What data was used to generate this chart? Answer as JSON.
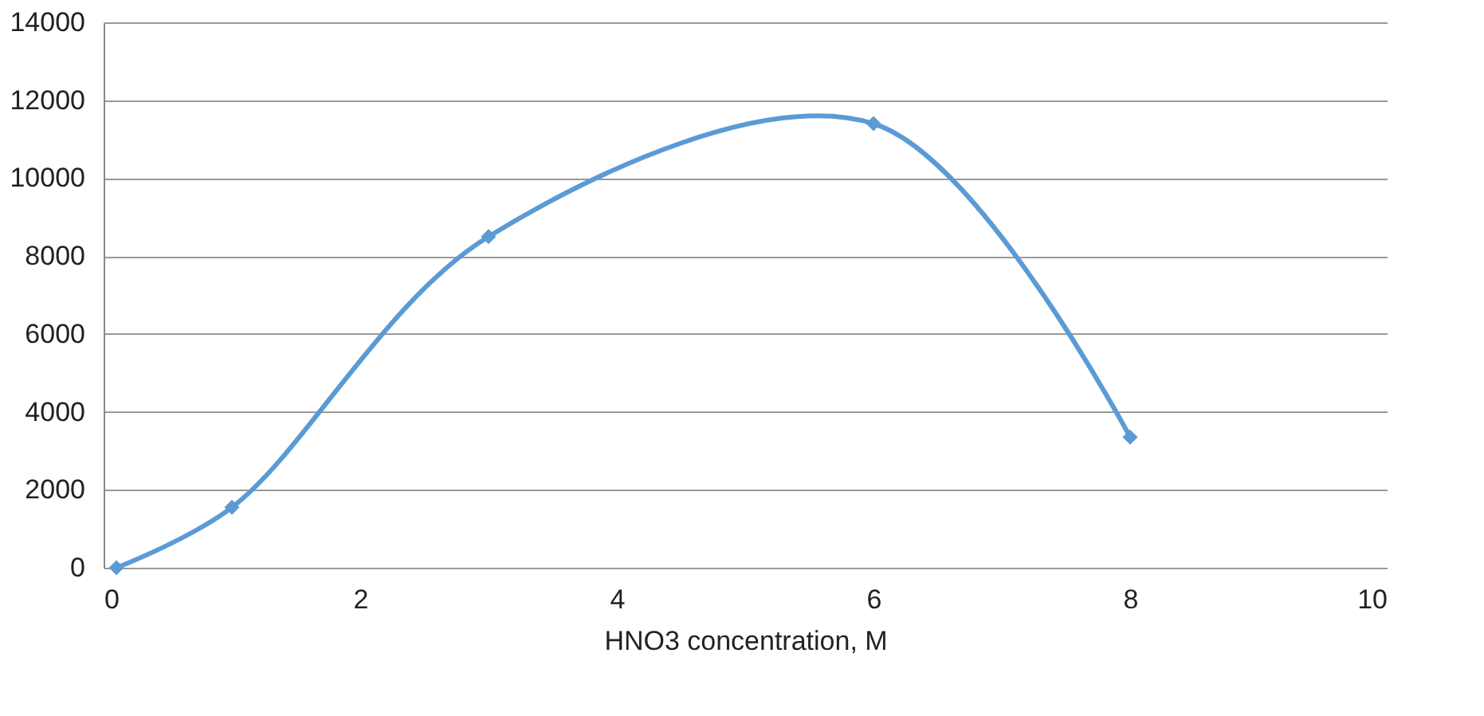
{
  "chart_data": {
    "type": "line",
    "xlabel": "HNO3 concentration, M",
    "x": [
      0.1,
      1,
      3,
      6,
      8
    ],
    "series": [
      {
        "color": "#5b9bd5",
        "values": [
          0,
          1550,
          8500,
          11400,
          3350
        ]
      }
    ],
    "xlim": [
      0,
      10
    ],
    "xticks": [
      0,
      2,
      4,
      6,
      8,
      10
    ],
    "ylim": [
      0,
      14000
    ],
    "yticks": [
      0,
      2000,
      4000,
      6000,
      8000,
      10000,
      12000,
      14000
    ],
    "grid": "y",
    "marker": "diamond",
    "line_style": "solid"
  }
}
